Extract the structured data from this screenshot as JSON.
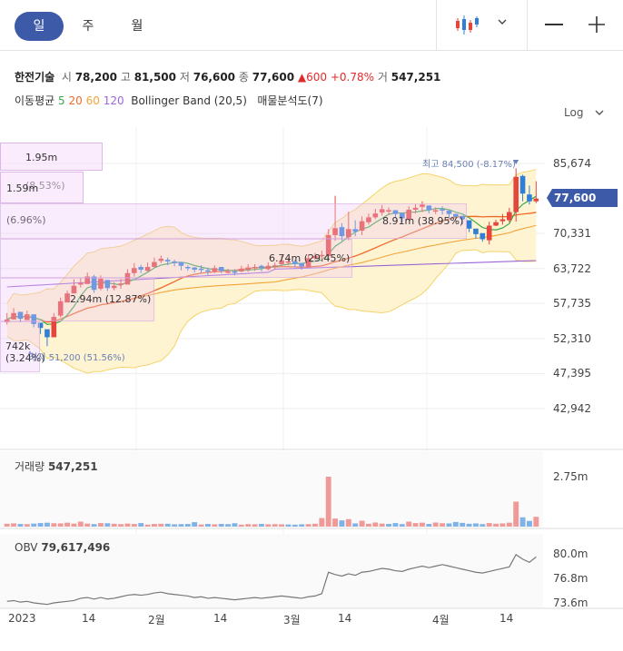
{
  "tabs": {
    "day": "일",
    "week": "주",
    "month": "월"
  },
  "toolbar": {
    "chart_icon": "candlestick-icon",
    "dropdown_icon": "chevron-down-icon",
    "minimize": "—",
    "add": "+"
  },
  "info": {
    "name": "한전기술",
    "open_label": "시",
    "open": "78,200",
    "high_label": "고",
    "high": "81,500",
    "low_label": "저",
    "low": "76,600",
    "close_label": "종",
    "close": "77,600",
    "change": "▲600",
    "pct": "+0.78%",
    "vol_label": "거",
    "volume": "547,251"
  },
  "indicators": {
    "ma_label": "이동평균",
    "ma5": "5",
    "ma20": "20",
    "ma60": "60",
    "ma120": "120",
    "bb": "Bollinger Band (20,5)",
    "vp": "매물분석도(7)"
  },
  "scale": {
    "log": "Log"
  },
  "price_axis": [
    "85,674",
    "70,331",
    "63,722",
    "57,735",
    "52,310",
    "47,395",
    "42,942"
  ],
  "current_price": "77,600",
  "volume_panel": {
    "label": "거래량",
    "value": "547,251",
    "ticks": [
      "2.75m"
    ]
  },
  "obv_panel": {
    "label": "OBV",
    "value": "79,617,496",
    "ticks": [
      "80.0m",
      "76.8m",
      "73.6m"
    ]
  },
  "x_axis": [
    "2023",
    "14",
    "2월",
    "14",
    "3월",
    "14",
    "4월",
    "14"
  ],
  "volume_profile": [
    {
      "label": "1.95m (8.53%)"
    },
    {
      "label": "1.59m (6.96%)"
    },
    {
      "label": "8.91m (38.95%)"
    },
    {
      "label": "6.74m (29.45%)"
    },
    {
      "label": "2.94m (12.87%)"
    },
    {
      "label": "742k (3.24%)"
    }
  ],
  "annotations": {
    "high": "최고 84,500 (-8.17%)",
    "low": "최저 51,200 (51.56%)"
  },
  "colors": {
    "up": "#e5463c",
    "down": "#2f7fd8",
    "ma5": "#3aa84a",
    "ma20": "#ef6a2a",
    "ma60": "#f2a43a",
    "ma120": "#9b66d6",
    "bb": "#fff4d2",
    "bb_line": "#f5d36a",
    "accent": "#3d5aa8"
  },
  "chart_data": {
    "type": "candlestick",
    "closes": [
      55200,
      56200,
      55300,
      56000,
      54500,
      53900,
      52500,
      55600,
      58100,
      59400,
      60700,
      61200,
      62300,
      60000,
      61900,
      60300,
      60700,
      61100,
      62900,
      63800,
      63500,
      64000,
      64900,
      65500,
      65000,
      64700,
      64200,
      63900,
      63500,
      63600,
      63200,
      63800,
      63300,
      63200,
      63000,
      63700,
      63900,
      64000,
      63800,
      64200,
      64300,
      65200,
      65000,
      64500,
      64100,
      65600,
      66000,
      66200,
      70000,
      71400,
      69800,
      71200,
      70700,
      72800,
      73600,
      74400,
      75300,
      75100,
      74300,
      73400,
      75200,
      75600,
      76300,
      75100,
      75100,
      75200,
      74300,
      73700,
      73200,
      71300,
      70200,
      69200,
      71900,
      72600,
      73200,
      74700,
      82500,
      78700,
      77000,
      77600
    ],
    "highs": [
      56200,
      57000,
      56300,
      56600,
      55200,
      54300,
      53000,
      56200,
      58700,
      59900,
      61800,
      62000,
      63000,
      62600,
      62500,
      61000,
      61300,
      61900,
      63600,
      64700,
      64400,
      64800,
      65700,
      66100,
      65700,
      65300,
      64900,
      64300,
      64000,
      64300,
      63900,
      64300,
      63800,
      63700,
      63600,
      64200,
      64500,
      64500,
      64400,
      64800,
      64800,
      66100,
      65700,
      65300,
      64600,
      66300,
      66600,
      67000,
      71200,
      78200,
      72400,
      74800,
      73000,
      73800,
      74400,
      75400,
      76200,
      75700,
      75000,
      74300,
      75900,
      76400,
      77000,
      75900,
      75700,
      75900,
      75100,
      74400,
      73900,
      72300,
      70800,
      69700,
      72700,
      73100,
      74300,
      75600,
      84500,
      83000,
      80500,
      81500
    ],
    "lows": [
      54400,
      55200,
      54800,
      55100,
      54000,
      53000,
      51200,
      54300,
      55500,
      58500,
      59800,
      60400,
      61200,
      59500,
      59900,
      59800,
      59900,
      60200,
      61100,
      62300,
      62900,
      63200,
      63900,
      64700,
      64300,
      64100,
      63400,
      63300,
      63000,
      62900,
      62600,
      62900,
      62900,
      62800,
      62500,
      63000,
      63100,
      63300,
      63200,
      63400,
      63600,
      64100,
      64300,
      63900,
      63500,
      64000,
      65300,
      65200,
      65400,
      68900,
      68900,
      69000,
      69800,
      70000,
      72100,
      73200,
      74000,
      74100,
      73400,
      72600,
      73000,
      74400,
      74700,
      74400,
      74300,
      74200,
      73300,
      72700,
      72200,
      70600,
      69300,
      68700,
      68200,
      71800,
      72100,
      72600,
      72700,
      77000,
      76300,
      76600
    ],
    "volumes": [
      0.16,
      0.18,
      0.15,
      0.14,
      0.17,
      0.2,
      0.22,
      0.19,
      0.18,
      0.22,
      0.17,
      0.28,
      0.17,
      0.14,
      0.2,
      0.19,
      0.16,
      0.14,
      0.17,
      0.15,
      0.2,
      0.11,
      0.15,
      0.16,
      0.16,
      0.13,
      0.14,
      0.15,
      0.25,
      0.12,
      0.15,
      0.13,
      0.15,
      0.14,
      0.19,
      0.11,
      0.14,
      0.13,
      0.15,
      0.13,
      0.14,
      0.13,
      0.12,
      0.11,
      0.13,
      0.14,
      0.16,
      0.48,
      2.8,
      0.45,
      0.35,
      0.42,
      0.18,
      0.33,
      0.16,
      0.23,
      0.17,
      0.15,
      0.2,
      0.14,
      0.28,
      0.2,
      0.22,
      0.15,
      0.23,
      0.19,
      0.18,
      0.26,
      0.21,
      0.16,
      0.18,
      0.14,
      0.2,
      0.16,
      0.18,
      0.22,
      1.4,
      0.52,
      0.32,
      0.55
    ],
    "obv": [
      73.8,
      73.9,
      73.7,
      73.8,
      73.6,
      73.5,
      73.4,
      73.6,
      73.7,
      73.8,
      73.9,
      74.2,
      74.3,
      74.1,
      74.3,
      74.1,
      74.2,
      74.4,
      74.6,
      74.7,
      74.6,
      74.7,
      74.9,
      75.0,
      74.8,
      74.7,
      74.6,
      74.5,
      74.3,
      74.4,
      74.2,
      74.3,
      74.2,
      74.1,
      74.0,
      74.1,
      74.2,
      74.3,
      74.2,
      74.3,
      74.4,
      74.5,
      74.4,
      74.3,
      74.2,
      74.4,
      74.5,
      74.8,
      77.6,
      77.3,
      77.1,
      77.4,
      77.2,
      77.6,
      77.7,
      77.9,
      78.1,
      78.0,
      77.8,
      77.7,
      78.0,
      78.2,
      78.4,
      78.2,
      78.4,
      78.6,
      78.4,
      78.2,
      78.0,
      77.8,
      77.6,
      77.5,
      77.7,
      77.9,
      78.1,
      78.3,
      79.9,
      79.3,
      78.9,
      79.6
    ]
  }
}
